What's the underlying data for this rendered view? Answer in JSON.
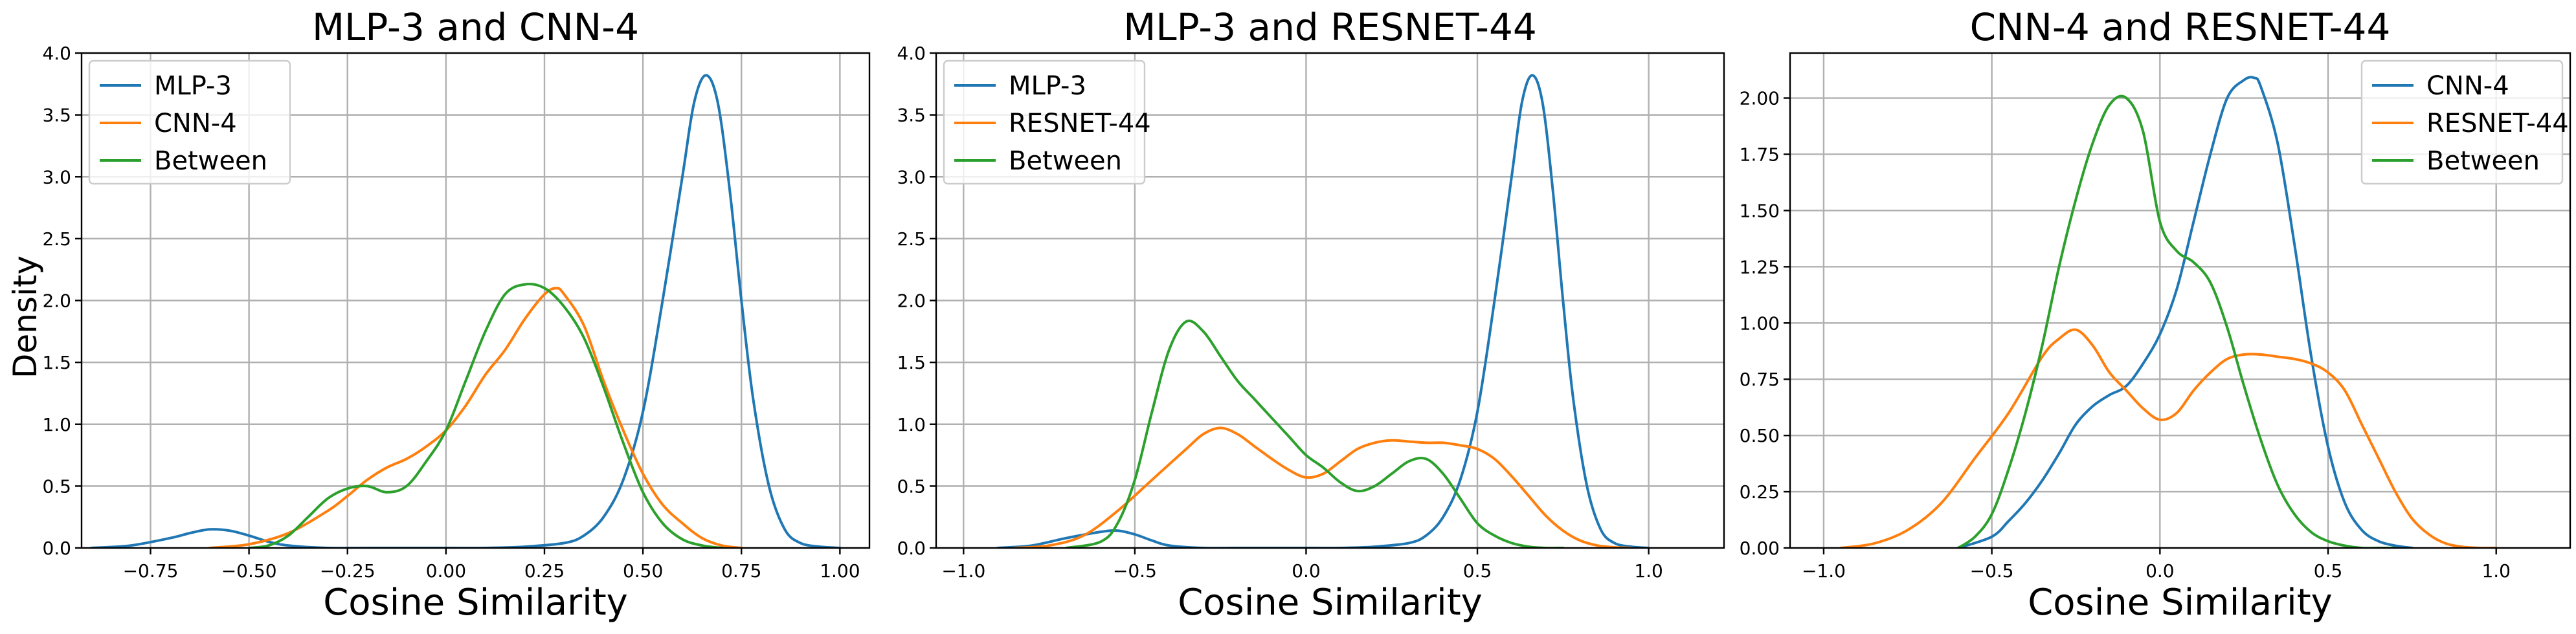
{
  "figure": {
    "shared_ylabel": "Density"
  },
  "chart_data": [
    {
      "type": "line",
      "title": "MLP-3 and CNN-4",
      "xlabel": "Cosine Similarity",
      "ylabel": "Density",
      "xlim": [
        -0.925,
        1.075
      ],
      "ylim": [
        0,
        4.0
      ],
      "xticks": [
        -0.75,
        -0.5,
        -0.25,
        0.0,
        0.25,
        0.5,
        0.75,
        1.0
      ],
      "xtick_labels": [
        "−0.75",
        "−0.50",
        "−0.25",
        "0.00",
        "0.25",
        "0.50",
        "0.75",
        "1.00"
      ],
      "yticks": [
        0,
        0.5,
        1.0,
        1.5,
        2.0,
        2.5,
        3.0,
        3.5,
        4.0
      ],
      "ytick_labels": [
        "0.0",
        "0.5",
        "1.0",
        "1.5",
        "2.0",
        "2.5",
        "3.0",
        "3.5",
        "4.0"
      ],
      "grid": true,
      "legend_position": "top-left",
      "series": [
        {
          "name": "MLP-3",
          "color": "#1f77b4",
          "x": [
            -0.9,
            -0.8,
            -0.7,
            -0.65,
            -0.6,
            -0.55,
            -0.5,
            -0.45,
            -0.4,
            -0.3,
            -0.2,
            0.0,
            0.1,
            0.2,
            0.3,
            0.35,
            0.4,
            0.45,
            0.5,
            0.55,
            0.6,
            0.63,
            0.66,
            0.69,
            0.72,
            0.75,
            0.78,
            0.82,
            0.86,
            0.9,
            0.95,
            1.0
          ],
          "y": [
            0.0,
            0.02,
            0.08,
            0.12,
            0.15,
            0.14,
            0.1,
            0.05,
            0.02,
            0.0,
            0.0,
            0.0,
            0.0,
            0.01,
            0.04,
            0.1,
            0.25,
            0.55,
            1.1,
            2.0,
            3.0,
            3.6,
            3.82,
            3.6,
            2.9,
            2.0,
            1.2,
            0.5,
            0.15,
            0.04,
            0.01,
            0.0
          ]
        },
        {
          "name": "CNN-4",
          "color": "#ff7f0e",
          "x": [
            -0.6,
            -0.5,
            -0.4,
            -0.3,
            -0.25,
            -0.2,
            -0.15,
            -0.1,
            -0.05,
            0.0,
            0.05,
            0.1,
            0.15,
            0.2,
            0.25,
            0.28,
            0.3,
            0.35,
            0.4,
            0.45,
            0.5,
            0.55,
            0.6,
            0.65,
            0.7,
            0.75
          ],
          "y": [
            0.0,
            0.03,
            0.12,
            0.3,
            0.42,
            0.55,
            0.65,
            0.72,
            0.82,
            0.95,
            1.15,
            1.4,
            1.6,
            1.85,
            2.05,
            2.1,
            2.05,
            1.8,
            1.35,
            0.95,
            0.6,
            0.35,
            0.2,
            0.08,
            0.02,
            0.0
          ]
        },
        {
          "name": "Between",
          "color": "#2ca02c",
          "x": [
            -0.5,
            -0.45,
            -0.4,
            -0.35,
            -0.3,
            -0.25,
            -0.2,
            -0.15,
            -0.1,
            -0.05,
            0.0,
            0.05,
            0.1,
            0.15,
            0.2,
            0.25,
            0.3,
            0.35,
            0.4,
            0.45,
            0.5,
            0.55,
            0.6,
            0.65,
            0.7
          ],
          "y": [
            0.0,
            0.02,
            0.1,
            0.25,
            0.4,
            0.48,
            0.5,
            0.45,
            0.5,
            0.7,
            0.95,
            1.35,
            1.75,
            2.05,
            2.13,
            2.1,
            1.95,
            1.7,
            1.3,
            0.85,
            0.45,
            0.2,
            0.07,
            0.02,
            0.0
          ]
        }
      ]
    },
    {
      "type": "line",
      "title": "MLP-3 and RESNET-44",
      "xlabel": "Cosine Similarity",
      "ylabel": "",
      "xlim": [
        -1.08,
        1.22
      ],
      "ylim": [
        0,
        4.0
      ],
      "xticks": [
        -1.0,
        -0.5,
        0.0,
        0.5,
        1.0
      ],
      "xtick_labels": [
        "−1.0",
        "−0.5",
        "0.0",
        "0.5",
        "1.0"
      ],
      "yticks": [
        0,
        0.5,
        1.0,
        1.5,
        2.0,
        2.5,
        3.0,
        3.5,
        4.0
      ],
      "ytick_labels": [
        "0.0",
        "0.5",
        "1.0",
        "1.5",
        "2.0",
        "2.5",
        "3.0",
        "3.5",
        "4.0"
      ],
      "grid": true,
      "legend_position": "top-left",
      "series": [
        {
          "name": "MLP-3",
          "color": "#1f77b4",
          "x": [
            -0.9,
            -0.8,
            -0.7,
            -0.6,
            -0.55,
            -0.5,
            -0.45,
            -0.4,
            -0.3,
            -0.2,
            0.0,
            0.1,
            0.2,
            0.3,
            0.35,
            0.4,
            0.45,
            0.5,
            0.55,
            0.6,
            0.63,
            0.66,
            0.69,
            0.72,
            0.75,
            0.78,
            0.82,
            0.86,
            0.9,
            0.95,
            1.0
          ],
          "y": [
            0.0,
            0.02,
            0.08,
            0.13,
            0.14,
            0.11,
            0.06,
            0.02,
            0.0,
            0.0,
            0.0,
            0.0,
            0.01,
            0.04,
            0.1,
            0.25,
            0.55,
            1.1,
            2.0,
            3.0,
            3.6,
            3.82,
            3.6,
            2.9,
            2.0,
            1.2,
            0.5,
            0.15,
            0.04,
            0.01,
            0.0
          ]
        },
        {
          "name": "RESNET-44",
          "color": "#ff7f0e",
          "x": [
            -0.85,
            -0.75,
            -0.65,
            -0.55,
            -0.45,
            -0.35,
            -0.3,
            -0.25,
            -0.2,
            -0.15,
            -0.1,
            -0.05,
            0.0,
            0.05,
            0.1,
            0.15,
            0.2,
            0.25,
            0.3,
            0.35,
            0.4,
            0.45,
            0.5,
            0.55,
            0.6,
            0.65,
            0.7,
            0.75,
            0.8,
            0.85,
            0.9,
            0.95
          ],
          "y": [
            0.0,
            0.02,
            0.1,
            0.3,
            0.55,
            0.8,
            0.92,
            0.97,
            0.92,
            0.82,
            0.72,
            0.63,
            0.57,
            0.6,
            0.7,
            0.8,
            0.85,
            0.87,
            0.86,
            0.85,
            0.85,
            0.83,
            0.8,
            0.72,
            0.58,
            0.42,
            0.26,
            0.14,
            0.06,
            0.02,
            0.005,
            0.0
          ]
        },
        {
          "name": "Between",
          "color": "#2ca02c",
          "x": [
            -0.7,
            -0.6,
            -0.55,
            -0.5,
            -0.45,
            -0.4,
            -0.35,
            -0.3,
            -0.25,
            -0.2,
            -0.15,
            -0.1,
            -0.05,
            0.0,
            0.05,
            0.1,
            0.15,
            0.2,
            0.25,
            0.3,
            0.35,
            0.4,
            0.45,
            0.5,
            0.55,
            0.6,
            0.65,
            0.7,
            0.75
          ],
          "y": [
            0.0,
            0.05,
            0.2,
            0.55,
            1.1,
            1.6,
            1.83,
            1.75,
            1.55,
            1.35,
            1.2,
            1.05,
            0.9,
            0.75,
            0.65,
            0.53,
            0.46,
            0.5,
            0.6,
            0.7,
            0.72,
            0.6,
            0.4,
            0.2,
            0.1,
            0.04,
            0.01,
            0.0,
            0.0
          ]
        }
      ]
    },
    {
      "type": "line",
      "title": "CNN-4 and RESNET-44",
      "xlabel": "Cosine Similarity",
      "ylabel": "",
      "xlim": [
        -1.1,
        1.22
      ],
      "ylim": [
        0,
        2.2
      ],
      "xticks": [
        -1.0,
        -0.5,
        0.0,
        0.5,
        1.0
      ],
      "xtick_labels": [
        "−1.0",
        "−0.5",
        "0.0",
        "0.5",
        "1.0"
      ],
      "yticks": [
        0,
        0.25,
        0.5,
        0.75,
        1.0,
        1.25,
        1.5,
        1.75,
        2.0
      ],
      "ytick_labels": [
        "0.00",
        "0.25",
        "0.50",
        "0.75",
        "1.00",
        "1.25",
        "1.50",
        "1.75",
        "2.00"
      ],
      "grid": true,
      "legend_position": "top-right",
      "series": [
        {
          "name": "CNN-4",
          "color": "#1f77b4",
          "x": [
            -0.6,
            -0.5,
            -0.45,
            -0.4,
            -0.35,
            -0.3,
            -0.25,
            -0.2,
            -0.15,
            -0.1,
            -0.05,
            0.0,
            0.05,
            0.1,
            0.15,
            0.2,
            0.25,
            0.28,
            0.3,
            0.35,
            0.4,
            0.45,
            0.5,
            0.55,
            0.6,
            0.65,
            0.7,
            0.75
          ],
          "y": [
            0.0,
            0.05,
            0.12,
            0.2,
            0.3,
            0.42,
            0.55,
            0.63,
            0.68,
            0.72,
            0.82,
            0.95,
            1.15,
            1.45,
            1.75,
            2.0,
            2.08,
            2.09,
            2.05,
            1.8,
            1.35,
            0.85,
            0.45,
            0.2,
            0.08,
            0.03,
            0.01,
            0.0
          ]
        },
        {
          "name": "RESNET-44",
          "color": "#ff7f0e",
          "x": [
            -0.95,
            -0.85,
            -0.75,
            -0.65,
            -0.55,
            -0.45,
            -0.35,
            -0.3,
            -0.25,
            -0.2,
            -0.15,
            -0.1,
            -0.05,
            0.0,
            0.05,
            0.1,
            0.15,
            0.2,
            0.25,
            0.3,
            0.35,
            0.4,
            0.45,
            0.5,
            0.55,
            0.6,
            0.65,
            0.7,
            0.75,
            0.8,
            0.85,
            0.9,
            0.95,
            1.0
          ],
          "y": [
            0.0,
            0.02,
            0.08,
            0.2,
            0.4,
            0.6,
            0.85,
            0.93,
            0.97,
            0.9,
            0.78,
            0.7,
            0.62,
            0.57,
            0.6,
            0.7,
            0.78,
            0.84,
            0.86,
            0.86,
            0.85,
            0.84,
            0.82,
            0.78,
            0.7,
            0.55,
            0.4,
            0.25,
            0.13,
            0.06,
            0.02,
            0.005,
            0.0,
            0.0
          ]
        },
        {
          "name": "Between",
          "color": "#2ca02c",
          "x": [
            -0.6,
            -0.55,
            -0.5,
            -0.45,
            -0.4,
            -0.35,
            -0.3,
            -0.25,
            -0.2,
            -0.15,
            -0.1,
            -0.05,
            0.0,
            0.05,
            0.1,
            0.15,
            0.2,
            0.25,
            0.3,
            0.35,
            0.4,
            0.45,
            0.5,
            0.55,
            0.6,
            0.65,
            0.7
          ],
          "y": [
            0.0,
            0.05,
            0.15,
            0.35,
            0.6,
            0.9,
            1.25,
            1.55,
            1.8,
            1.97,
            2.0,
            1.85,
            1.45,
            1.32,
            1.27,
            1.18,
            0.98,
            0.72,
            0.48,
            0.28,
            0.15,
            0.07,
            0.03,
            0.01,
            0.0,
            0.0,
            0.0
          ]
        }
      ]
    }
  ]
}
